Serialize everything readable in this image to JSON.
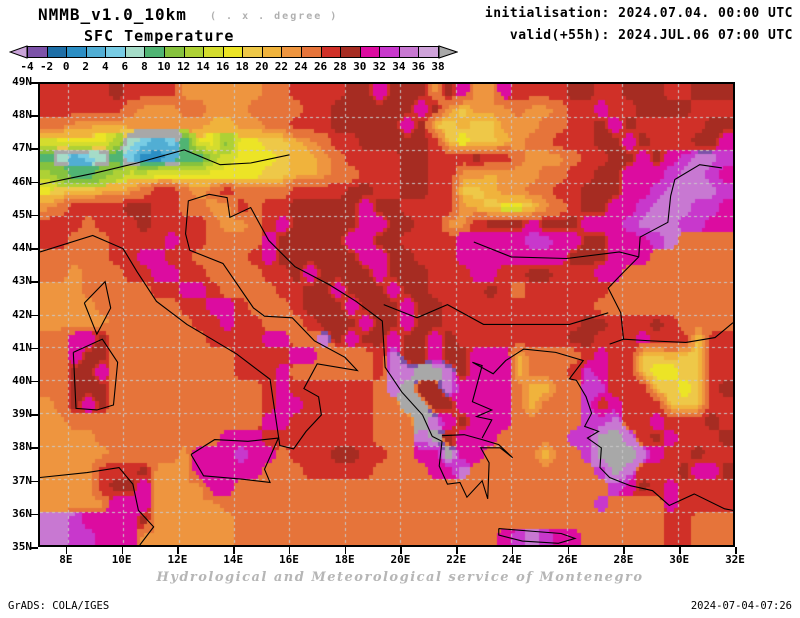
{
  "header": {
    "model_title": "NMMB_v1.0_10km",
    "model_subtitle": "( . x . degree )",
    "variable_title": "SFC Temperature",
    "init_line": "initialisation: 2024.07.04. 00:00 UTC",
    "valid_line": "valid(+55h): 2024.JUL.06 07:00 UTC"
  },
  "footer": {
    "service_credit": "Hydrological and Meteorological service of Montenegro",
    "grads_credit": "GrADS: COLA/IGES",
    "timestamp": "2024-07-04-07:26"
  },
  "axes": {
    "lat_labels": [
      "49N",
      "48N",
      "47N",
      "46N",
      "45N",
      "44N",
      "43N",
      "42N",
      "41N",
      "40N",
      "39N",
      "38N",
      "37N",
      "36N",
      "35N"
    ],
    "lon_labels": [
      "8E",
      "10E",
      "12E",
      "14E",
      "16E",
      "18E",
      "20E",
      "22E",
      "24E",
      "26E",
      "28E",
      "30E",
      "32E"
    ],
    "lon_range": [
      7,
      32
    ],
    "lat_range": [
      35,
      49
    ]
  },
  "chart_data": {
    "type": "heatmap",
    "title": "SFC Temperature",
    "units": "degree",
    "legend_tick_labels": [
      "-4",
      "-2",
      "0",
      "2",
      "4",
      "6",
      "8",
      "10",
      "12",
      "14",
      "16",
      "18",
      "20",
      "22",
      "24",
      "26",
      "28",
      "30",
      "32",
      "34",
      "36",
      "38"
    ],
    "under_color": "#c9a3d8",
    "over_color": "#a8a8a8",
    "bin_colors": [
      "#7c52a8",
      "#1d6ea6",
      "#2b8ec4",
      "#51aed4",
      "#78cce4",
      "#a5dcc8",
      "#50b473",
      "#86c23e",
      "#aed135",
      "#d4dc2e",
      "#ece426",
      "#eec848",
      "#f0b33c",
      "#ee953f",
      "#e6743a",
      "#d03028",
      "#a62c22",
      "#dc0ca0",
      "#c838cc",
      "#c878d2",
      "#cfa3da"
    ],
    "palette_letters": {
      "a": "#c9a3d8",
      "b": "#7c52a8",
      "c": "#1d6ea6",
      "d": "#2b8ec4",
      "e": "#51aed4",
      "f": "#78cce4",
      "g": "#a5dcc8",
      "h": "#50b473",
      "i": "#86c23e",
      "j": "#aed135",
      "k": "#d4dc2e",
      "l": "#ece426",
      "m": "#eec848",
      "n": "#f0b33c",
      "o": "#ee953f",
      "p": "#e6743a",
      "q": "#d03028",
      "r": "#a62c22",
      "s": "#dc0ca0",
      "t": "#c838cc",
      "u": "#c878d2",
      "v": "#cfa3da",
      "w": "#a8a8a8"
    },
    "grid": {
      "lon_min": 7,
      "lon_max": 32,
      "lat_min": 35,
      "lat_max": 49,
      "cell_deg": 0.5,
      "note": "rows listed north to south, letters map to palette_letters temperature bins",
      "rows_north_to_south": [
        "qqqqqrqqqqooooooppqqqqrrsrrrorsoosqqqqrrqqrrrqqrrr",
        "qqqqqqpoooppoooppppqqrrrrrrsromooopoopqqsqqrrrrqqq",
        "ppoonnoooooonnooppqqqrrrrrsrmmnmmoooppqqrsrqqqqqrr",
        "klllljgfefhllillmmnopqqrrrrrqmlmmnoppqqqrrsrqqqrrs",
        "hgefghfddehhjklllmnnopqqqqrrqqqrqqpooopqqrrsrstuut",
        "jihhijkkllllllllmmnnoppqqqrrqqoonoooppqqrrssstuuts",
        "lmmmnnopqqpopqppppqqqqrrqqrrqqmmnooppqqrrrsstuuuut",
        "opqqqqrrqqppooqpqqrrrrrsrrqqqqonmllmopqrrsstuuutts",
        "qqqpqqqrqqqqpoopqsrrrrrssrrqqooqrrrsrrrssstuuuttss",
        "qqpppqqqqsqqppppsrrrrrssrrqqqqsssssttssrrssstupppp",
        "pppppqqssqqppppqsrrrrrrssrrqqqssssssssrrrssspppppp",
        "ppopppqqssqqppppqqrsrrrrsrrrqqqssqqrrqqqsspppppppp",
        "ooopppppqqssqppppqqrrsrrrsrrqqqqrqoqqqqqqppppppppp",
        "ooooppppppqqssqpppqrrrsrrrsrrqqqqqqqqqqqpppppppppp",
        "oooooppppppqqsqqpppqrrrsrrsrrqqqqqqqqqqrrqqqrqpppp",
        "ppssrpppppppqqqqssppursrrsrrsrqqqqqqqqrrqqqsqqqmqq",
        "ppsrrpppppppppqqqqssppppqurrsrrsssnppppqsqqmmnmmqq",
        "pprrspppppppppqqqsppppppquuwwursssnpppqtsqqmllmmqq",
        "pprrrpppppppppppqsqqqqqqpuwrrusssspnnppttqqqmmlmqr",
        "oprsrpppppppppppqssqqqqqppwwrrsssspnppptqsqqqmmmqq",
        "ooppppppppppppppssqqqqqqpppwusrssspppppttuqqsqqqrq",
        "oooopppppppppsssqqqqqqqqpppuwrssspppppttwwuqrsqqqr",
        "ooooopppppossstsspqqqrrqqppsswssppppnpptwwwusqqrqq",
        "ooooqqqrooossssspppqqqqqppppssuppppppppptwuqqqrssr",
        "ooooqrrsoooossppppppppppppppppppppppppppptsrqsqqqq",
        "ooooosssoooooppppppppppppppppppppppppppptppppsqqq",
        "uutssssroooooopppppppppppppppppppppppppppppppqqpp",
        "uuttsssooooooopppppppppppppppppppstutssppppppqqppp"
      ]
    }
  }
}
